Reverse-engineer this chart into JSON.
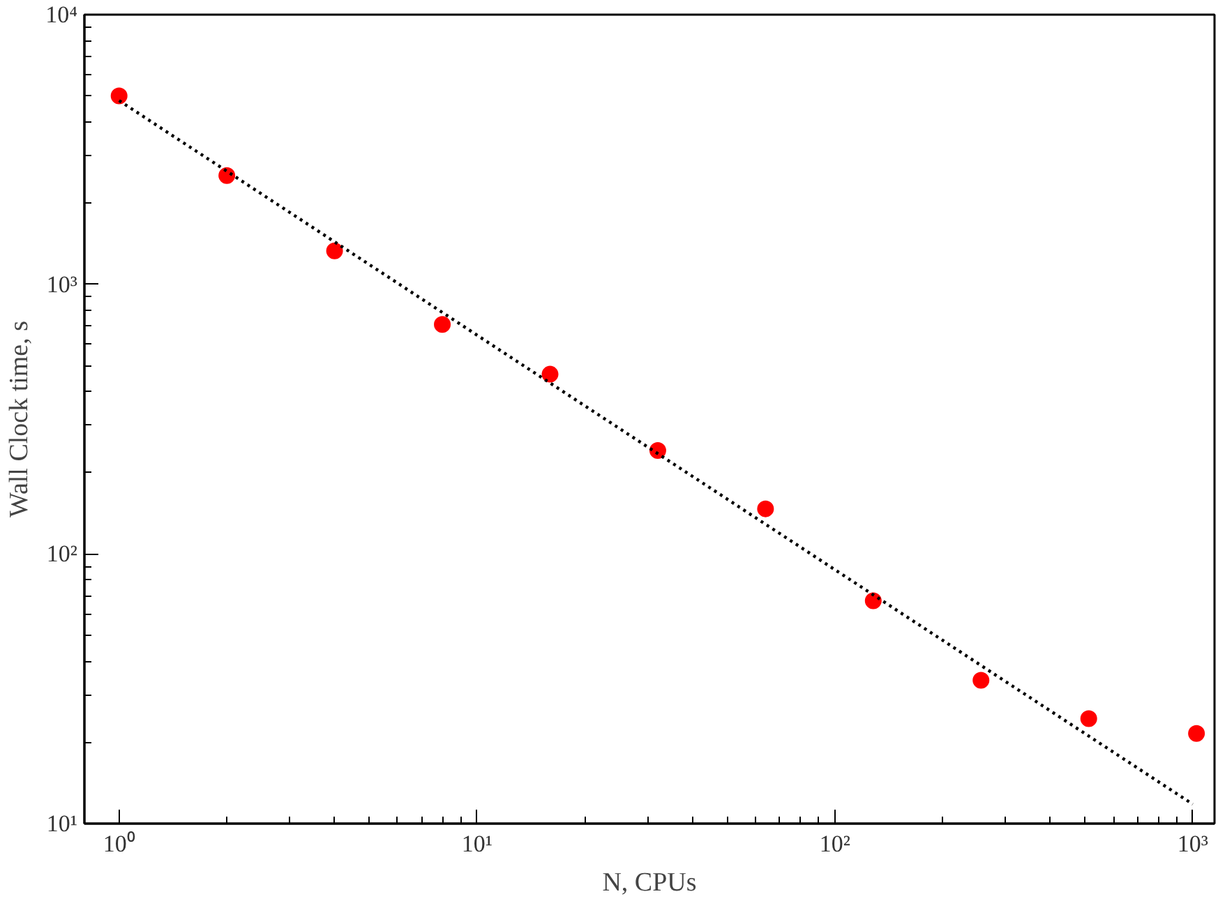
{
  "chart_data": {
    "type": "scatter",
    "xlabel": "N, CPUs",
    "ylabel": "Wall Clock time, s",
    "log": "xy",
    "grid": false,
    "xlim": [
      0.8,
      1150
    ],
    "ylim": [
      10,
      10000
    ],
    "xticks": [
      {
        "value": 1,
        "label": "10⁰"
      },
      {
        "value": 10,
        "label": "10¹"
      },
      {
        "value": 100,
        "label": "10²"
      },
      {
        "value": 1000,
        "label": "10³"
      }
    ],
    "yticks": [
      {
        "value": 10,
        "label": "10¹"
      },
      {
        "value": 100,
        "label": "10²"
      },
      {
        "value": 1000,
        "label": "10³"
      },
      {
        "value": 10000,
        "label": "10⁴"
      }
    ],
    "series": [
      {
        "marker": "circle",
        "color": "#ff0000",
        "x": [
          1,
          2,
          4,
          8,
          16,
          32,
          64,
          128,
          256,
          512,
          1024
        ],
        "values": [
          5000,
          2530,
          1330,
          710,
          464,
          242,
          147,
          67,
          34,
          24.5,
          21.6
        ]
      },
      {
        "type": "line",
        "marker": "none",
        "color": "#000000",
        "line_style": "dotted",
        "x": [
          1,
          1000
        ],
        "values": [
          4800,
          11.8
        ]
      }
    ]
  }
}
